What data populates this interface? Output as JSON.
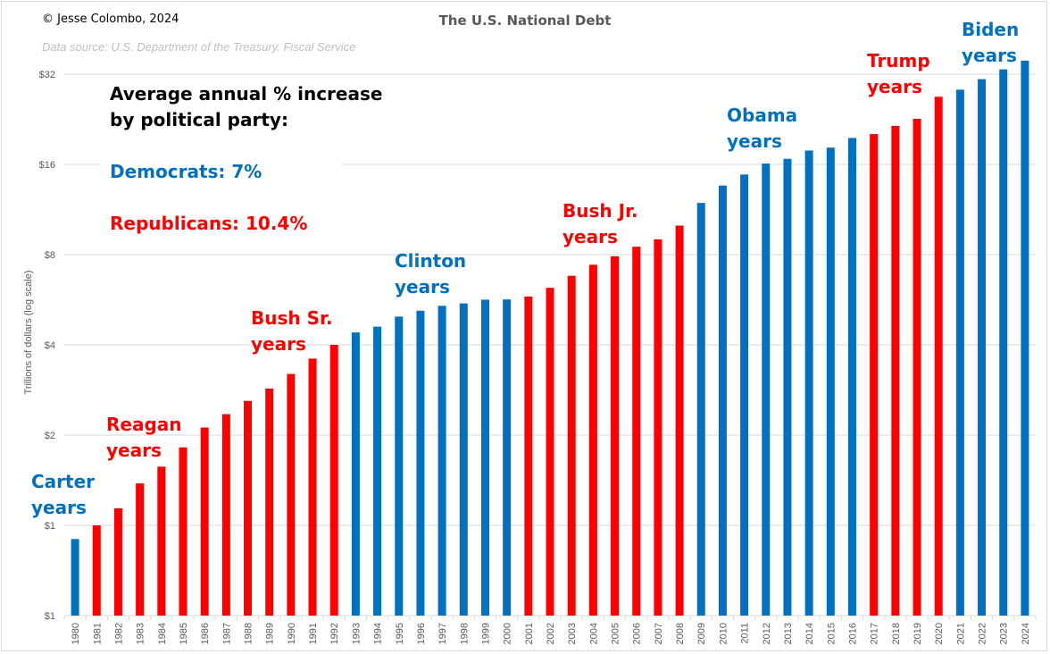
{
  "chart_data": {
    "type": "bar",
    "title": "The U.S. National Debt",
    "copyright": "© Jesse Colombo, 2024",
    "source": "Data source: U.S. Department of the Treasury. Fiscal Service",
    "xlabel": "",
    "ylabel": "Trillions of dollars (log scale)",
    "yscale": "log2",
    "ylim": [
      0.5,
      45
    ],
    "yticks": [
      {
        "value": 0.5,
        "label": "$1"
      },
      {
        "value": 1,
        "label": "$1"
      },
      {
        "value": 2,
        "label": "$2"
      },
      {
        "value": 4,
        "label": "$4"
      },
      {
        "value": 8,
        "label": "$8"
      },
      {
        "value": 16,
        "label": "$16"
      },
      {
        "value": 32,
        "label": "$32"
      }
    ],
    "grid": true,
    "colors": {
      "Democrat": "#0070C0",
      "Republican": "#FF0000"
    },
    "categories": [
      "1980",
      "1981",
      "1982",
      "1983",
      "1984",
      "1985",
      "1986",
      "1987",
      "1988",
      "1989",
      "1990",
      "1991",
      "1992",
      "1993",
      "1994",
      "1995",
      "1996",
      "1997",
      "1998",
      "1999",
      "2000",
      "2001",
      "2002",
      "2003",
      "2004",
      "2005",
      "2006",
      "2007",
      "2008",
      "2009",
      "2010",
      "2011",
      "2012",
      "2013",
      "2014",
      "2015",
      "2016",
      "2017",
      "2018",
      "2019",
      "2020",
      "2021",
      "2022",
      "2023",
      "2024"
    ],
    "values": [
      0.9,
      1.0,
      1.14,
      1.38,
      1.57,
      1.82,
      2.12,
      2.35,
      2.6,
      2.86,
      3.2,
      3.6,
      4.0,
      4.4,
      4.6,
      4.97,
      5.2,
      5.4,
      5.5,
      5.66,
      5.67,
      5.8,
      6.2,
      6.8,
      7.4,
      7.9,
      8.5,
      9.0,
      10.0,
      11.9,
      13.6,
      14.8,
      16.1,
      16.7,
      17.8,
      18.2,
      19.6,
      20.2,
      21.5,
      22.7,
      26.9,
      28.4,
      30.8,
      33.2,
      35.5
    ],
    "party": [
      "D",
      "R",
      "R",
      "R",
      "R",
      "R",
      "R",
      "R",
      "R",
      "R",
      "R",
      "R",
      "R",
      "D",
      "D",
      "D",
      "D",
      "D",
      "D",
      "D",
      "D",
      "R",
      "R",
      "R",
      "R",
      "R",
      "R",
      "R",
      "R",
      "D",
      "D",
      "D",
      "D",
      "D",
      "D",
      "D",
      "D",
      "R",
      "R",
      "R",
      "R",
      "D",
      "D",
      "D",
      "D"
    ],
    "annotations": {
      "summary_heading": [
        "Average annual % increase",
        "by political party:"
      ],
      "democrats": "Democrats: 7%",
      "republicans": "Republicans: 10.4%",
      "eras": [
        {
          "line1": "Carter",
          "line2": "years",
          "party": "D"
        },
        {
          "line1": "Reagan",
          "line2": "years",
          "party": "R"
        },
        {
          "line1": "Bush Sr.",
          "line2": "years",
          "party": "R"
        },
        {
          "line1": "Clinton",
          "line2": "years",
          "party": "D"
        },
        {
          "line1": "Bush Jr.",
          "line2": "years",
          "party": "R"
        },
        {
          "line1": "Obama",
          "line2": "years",
          "party": "D"
        },
        {
          "line1": "Trump",
          "line2": "years",
          "party": "R"
        },
        {
          "line1": "Biden",
          "line2": "years",
          "party": "D"
        }
      ]
    }
  }
}
